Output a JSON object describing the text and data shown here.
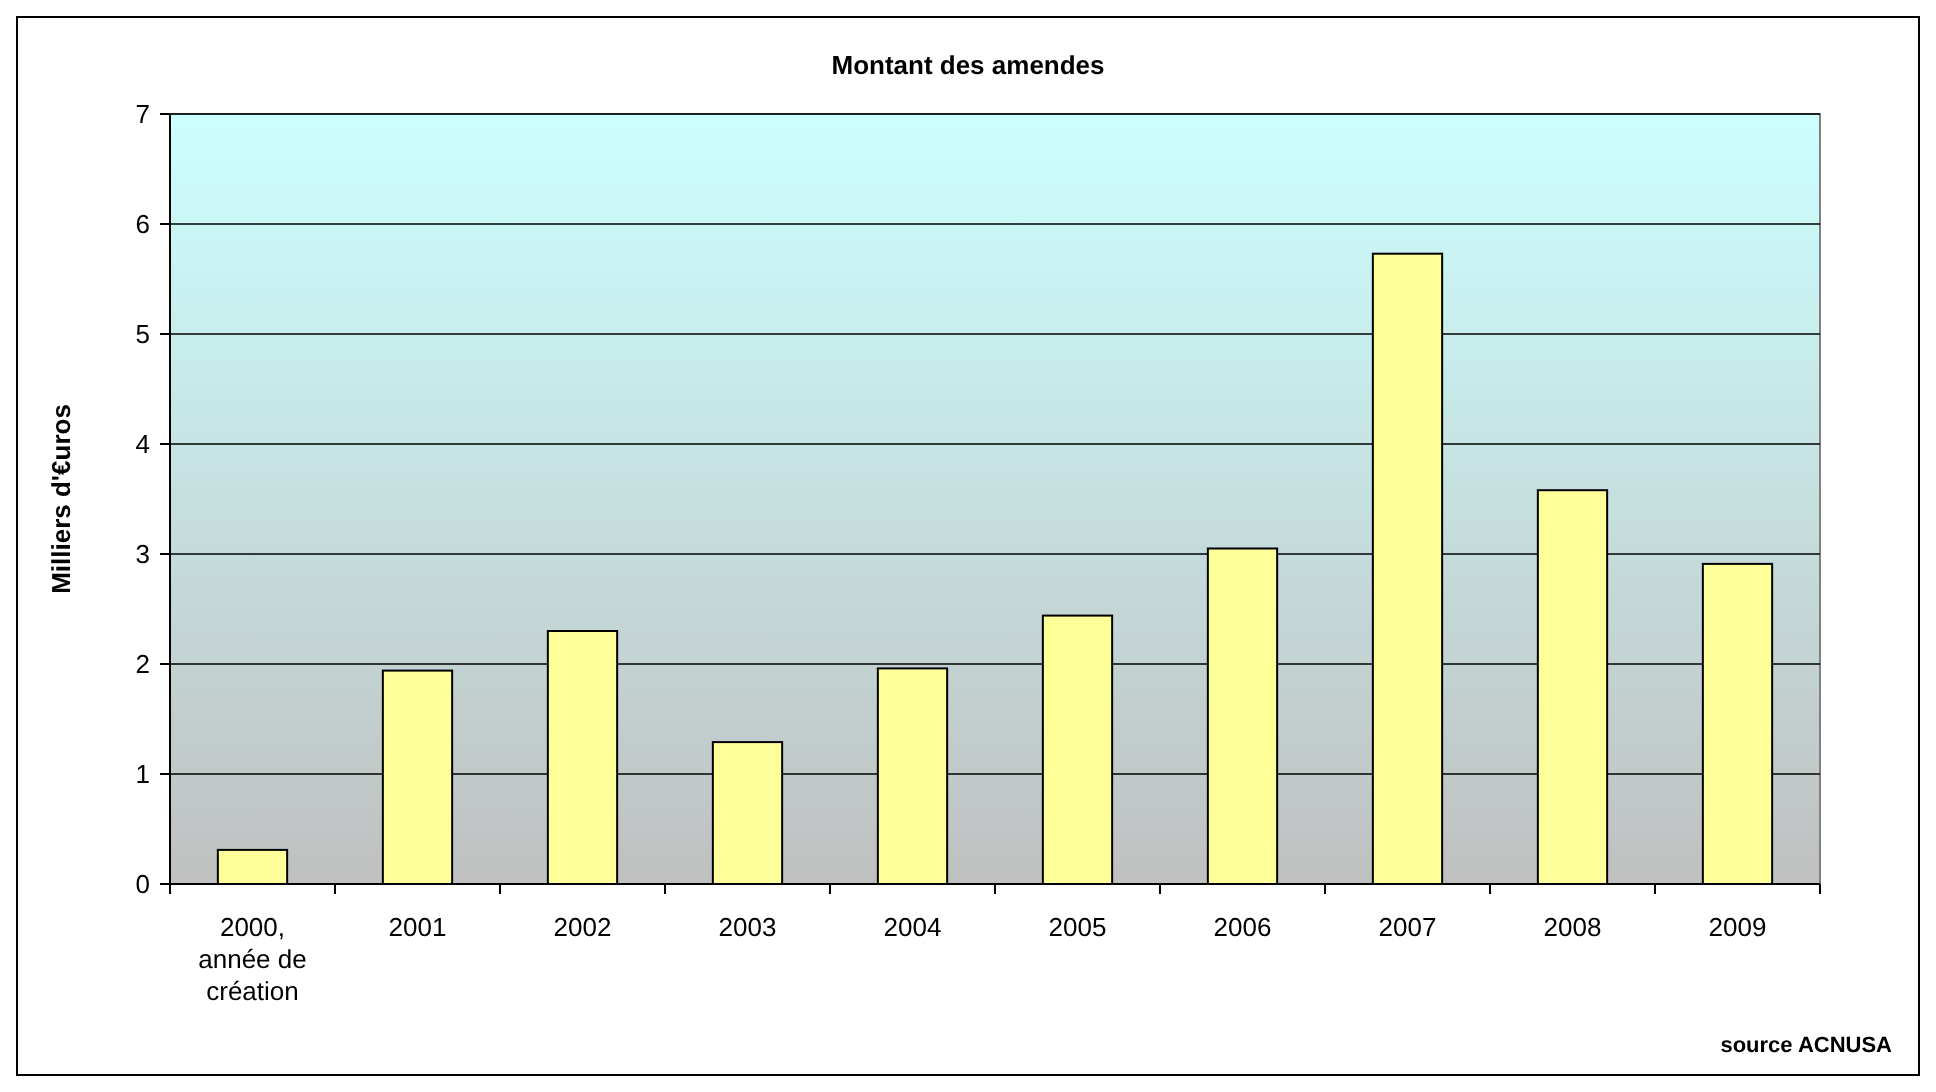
{
  "chart_data": {
    "type": "bar",
    "title": "Montant des amendes",
    "ylabel": "Milliers d'€uros",
    "categories": [
      "2000, année de création",
      "2001",
      "2002",
      "2003",
      "2004",
      "2005",
      "2006",
      "2007",
      "2008",
      "2009"
    ],
    "values": [
      0.31,
      1.94,
      2.3,
      1.29,
      1.96,
      2.44,
      3.05,
      5.73,
      3.58,
      2.91
    ],
    "color": "#ffff99",
    "ylim": [
      0,
      7
    ],
    "yticks": [
      0,
      1,
      2,
      3,
      4,
      5,
      6,
      7
    ],
    "grid": "y",
    "annotations": [
      "source ACNUSA"
    ]
  }
}
